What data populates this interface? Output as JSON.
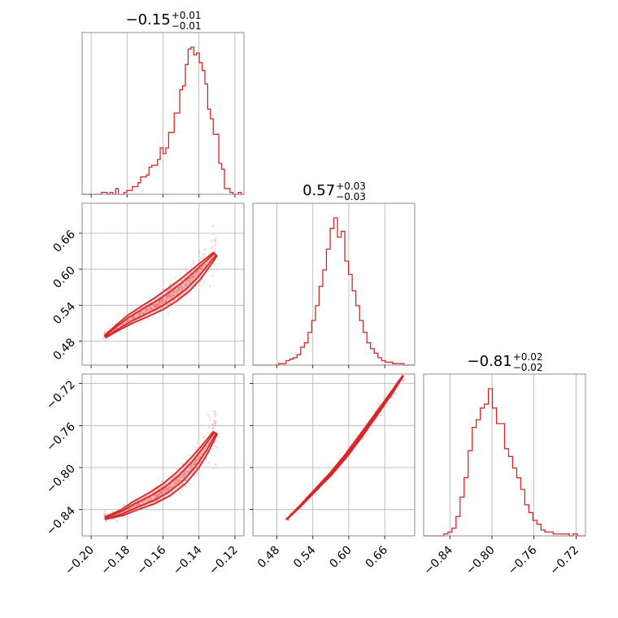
{
  "chart_data": {
    "type": "corner",
    "color": "#d62728",
    "grid": true,
    "params": [
      {
        "id": "p1",
        "title": {
          "median": "−0.15",
          "plus": "+0.01",
          "minus": "−0.01"
        },
        "range": [
          -0.205,
          -0.115
        ],
        "ticks": [
          -0.2,
          -0.18,
          -0.16,
          -0.14,
          -0.12
        ],
        "tick_labels": [
          "−0.20",
          "−0.18",
          "−0.16",
          "−0.14",
          "−0.12"
        ],
        "hist_edges": [
          -0.205,
          -0.115
        ],
        "hist_counts": [
          0,
          0,
          0,
          0,
          0,
          0,
          0,
          1,
          1,
          0,
          1,
          0,
          3,
          0,
          0,
          1,
          2,
          2,
          4,
          4,
          6,
          9,
          9,
          10,
          14,
          15,
          15,
          18,
          24,
          21,
          24,
          32,
          32,
          42,
          42,
          54,
          56,
          67,
          75,
          76,
          72,
          73,
          68,
          64,
          57,
          44,
          39,
          31,
          31,
          16,
          13,
          3,
          3,
          1,
          0,
          0,
          1,
          0
        ]
      },
      {
        "id": "p2",
        "title": {
          "median": "0.57",
          "plus": "+0.03",
          "minus": "−0.03"
        },
        "range": [
          0.44,
          0.71
        ],
        "ticks": [
          0.48,
          0.54,
          0.6,
          0.66
        ],
        "tick_labels": [
          "0.48",
          "0.54",
          "0.60",
          "0.66"
        ],
        "hist_edges": [
          0.44,
          0.71
        ],
        "hist_counts": [
          0,
          0,
          0,
          0,
          0,
          0,
          0,
          1,
          1,
          3,
          4,
          5,
          7,
          12,
          15,
          22,
          30,
          40,
          53,
          64,
          78,
          92,
          99,
          86,
          90,
          70,
          61,
          50,
          40,
          30,
          22,
          15,
          11,
          8,
          5,
          3,
          2,
          2,
          1,
          1,
          1,
          0,
          0,
          0
        ]
      },
      {
        "id": "p3",
        "title": {
          "median": "−0.81",
          "plus": "+0.02",
          "minus": "−0.02"
        },
        "range": [
          -0.865,
          -0.711
        ],
        "ticks": [
          -0.84,
          -0.8,
          -0.76,
          -0.72
        ],
        "tick_labels": [
          "−0.84",
          "−0.80",
          "−0.76",
          "−0.72"
        ],
        "hist_edges": [
          -0.865,
          -0.711
        ],
        "hist_counts": [
          0,
          0,
          0,
          0,
          0,
          1,
          2,
          4,
          10,
          20,
          30,
          44,
          56,
          60,
          66,
          68,
          76,
          66,
          58,
          58,
          45,
          41,
          35,
          30,
          24,
          16,
          12,
          8,
          6,
          3,
          2,
          2,
          1,
          1,
          1,
          1,
          0,
          1,
          0,
          0
        ]
      }
    ],
    "pairs": [
      {
        "x": "p1",
        "y": "p2",
        "ridge": [
          [
            -0.192,
            0.488
          ],
          [
            -0.185,
            0.503
          ],
          [
            -0.178,
            0.517
          ],
          [
            -0.17,
            0.53
          ],
          [
            -0.162,
            0.543
          ],
          [
            -0.155,
            0.557
          ],
          [
            -0.148,
            0.573
          ],
          [
            -0.142,
            0.59
          ],
          [
            -0.137,
            0.606
          ],
          [
            -0.131,
            0.625
          ]
        ],
        "width_inner": 0.0035,
        "width_outer": 0.007,
        "spread": 0.01
      },
      {
        "x": "p1",
        "y": "p3",
        "ridge": [
          [
            -0.192,
            -0.848
          ],
          [
            -0.183,
            -0.843
          ],
          [
            -0.175,
            -0.836
          ],
          [
            -0.166,
            -0.829
          ],
          [
            -0.158,
            -0.821
          ],
          [
            -0.15,
            -0.81
          ],
          [
            -0.143,
            -0.797
          ],
          [
            -0.137,
            -0.783
          ],
          [
            -0.131,
            -0.767
          ]
        ],
        "width_inner": 0.003,
        "width_outer": 0.0065,
        "spread": 0.01
      },
      {
        "x": "p2",
        "y": "p3",
        "ridge": [
          [
            0.497,
            -0.849
          ],
          [
            0.52,
            -0.836
          ],
          [
            0.545,
            -0.821
          ],
          [
            0.57,
            -0.806
          ],
          [
            0.595,
            -0.789
          ],
          [
            0.62,
            -0.77
          ],
          [
            0.645,
            -0.75
          ],
          [
            0.67,
            -0.73
          ],
          [
            0.69,
            -0.713
          ]
        ],
        "width_inner": 0.002,
        "width_outer": 0.004,
        "spread": 0.003
      }
    ]
  }
}
